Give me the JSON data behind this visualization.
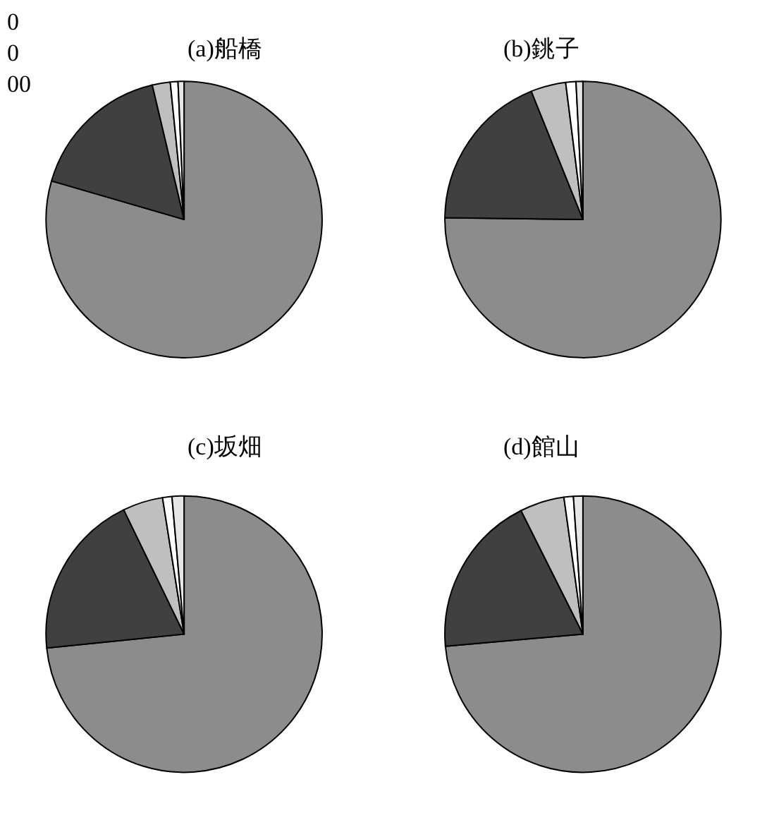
{
  "chart_data": [
    {
      "type": "pie",
      "title": "(a)船橋",
      "categories": [
        null,
        null,
        null,
        null,
        null
      ],
      "values": [
        79.5,
        16.8,
        2.1,
        0.9,
        0.7
      ],
      "colors": [
        "#8c8c8c",
        "#404040",
        "#bfbfbf",
        "#ffffff",
        "#e6e6e6"
      ],
      "annotations": [
        "0\n0\n00"
      ]
    },
    {
      "type": "pie",
      "title": "(b)銚子",
      "categories": [
        null,
        null,
        null,
        null,
        null
      ],
      "values": [
        75.2,
        18.7,
        4.1,
        1.2,
        0.8
      ],
      "colors": [
        "#8c8c8c",
        "#404040",
        "#bfbfbf",
        "#ffffff",
        "#e6e6e6"
      ]
    },
    {
      "type": "pie",
      "title": "(c)坂畑",
      "categories": [
        null,
        null,
        null,
        null,
        null
      ],
      "values": [
        73.4,
        19.4,
        4.7,
        1.1,
        1.4
      ],
      "colors": [
        "#8c8c8c",
        "#404040",
        "#bfbfbf",
        "#ffffff",
        "#e6e6e6"
      ]
    },
    {
      "type": "pie",
      "title": "(d)館山",
      "categories": [
        null,
        null,
        null,
        null,
        null
      ],
      "values": [
        73.6,
        19.0,
        5.2,
        1.1,
        1.1
      ],
      "colors": [
        "#8c8c8c",
        "#404040",
        "#bfbfbf",
        "#ffffff",
        "#e6e6e6"
      ]
    }
  ]
}
